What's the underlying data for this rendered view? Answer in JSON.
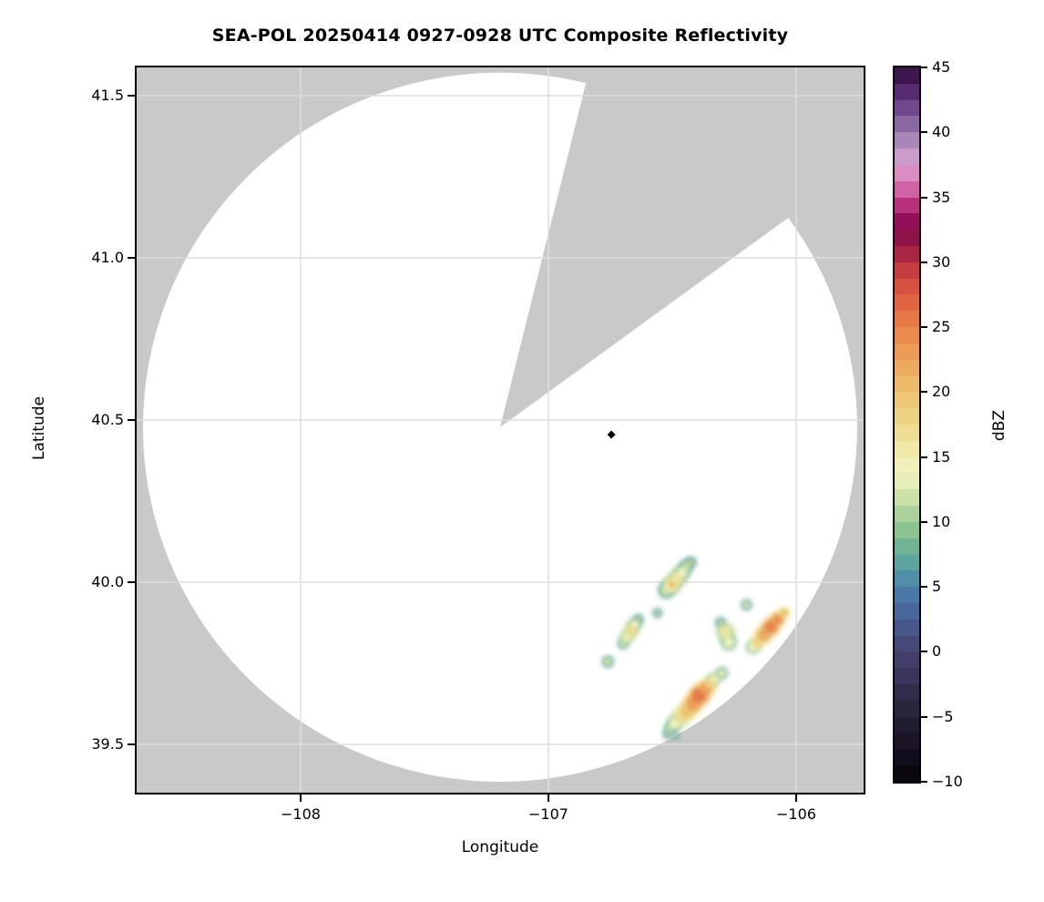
{
  "title": "SEA-POL 20250414 0927-0928 UTC Composite Reflectivity",
  "axes": {
    "xlabel": "Longitude",
    "ylabel": "Latitude",
    "x_ticks": [
      {
        "value": -108,
        "label": "−108"
      },
      {
        "value": -107,
        "label": "−107"
      },
      {
        "value": -106,
        "label": "−106"
      }
    ],
    "y_ticks": [
      {
        "value": 41.5,
        "label": "41.5"
      },
      {
        "value": 41.0,
        "label": "41.0"
      },
      {
        "value": 40.5,
        "label": "40.5"
      },
      {
        "value": 40.0,
        "label": "40.0"
      },
      {
        "value": 39.5,
        "label": "39.5"
      }
    ],
    "xlim": [
      -108.67,
      -105.72
    ],
    "ylim": [
      39.35,
      41.59
    ]
  },
  "colorbar": {
    "label": "dBZ",
    "vmin": -10,
    "vmax": 45,
    "ticks": [
      {
        "value": 45,
        "label": "45"
      },
      {
        "value": 40,
        "label": "40"
      },
      {
        "value": 35,
        "label": "35"
      },
      {
        "value": 30,
        "label": "30"
      },
      {
        "value": 25,
        "label": "25"
      },
      {
        "value": 20,
        "label": "20"
      },
      {
        "value": 15,
        "label": "15"
      },
      {
        "value": 10,
        "label": "10"
      },
      {
        "value": 5,
        "label": "5"
      },
      {
        "value": 0,
        "label": "0"
      },
      {
        "value": -5,
        "label": "−5"
      },
      {
        "value": -10,
        "label": "−10"
      }
    ],
    "colormap_stops": [
      [
        -10,
        "#050308"
      ],
      [
        -8.75,
        "#0e0a15"
      ],
      [
        -7.5,
        "#16101f"
      ],
      [
        -6.25,
        "#1e1829"
      ],
      [
        -5,
        "#262036"
      ],
      [
        -3.75,
        "#2e2743"
      ],
      [
        -2.5,
        "#363051"
      ],
      [
        -1.25,
        "#3e3a62"
      ],
      [
        0,
        "#444270"
      ],
      [
        1.25,
        "#46507f"
      ],
      [
        2.5,
        "#485e92"
      ],
      [
        3.75,
        "#4a70a2"
      ],
      [
        5,
        "#4c82ac"
      ],
      [
        6.25,
        "#559ba6"
      ],
      [
        7.5,
        "#65ab97"
      ],
      [
        8.75,
        "#7cba90"
      ],
      [
        10,
        "#9ccb95"
      ],
      [
        11.25,
        "#bcd9a0"
      ],
      [
        12.5,
        "#dbe8ae"
      ],
      [
        13.75,
        "#f2f3c2"
      ],
      [
        15,
        "#f0edb2"
      ],
      [
        16.25,
        "#eee29a"
      ],
      [
        17.5,
        "#edd88b"
      ],
      [
        18.75,
        "#edcc7c"
      ],
      [
        20,
        "#eec370"
      ],
      [
        21.25,
        "#edb365"
      ],
      [
        22.5,
        "#eca35b"
      ],
      [
        23.75,
        "#eb9351"
      ],
      [
        25,
        "#e88349"
      ],
      [
        26.25,
        "#e37043"
      ],
      [
        27.5,
        "#de5a42"
      ],
      [
        28.75,
        "#cf4741"
      ],
      [
        30,
        "#b73241"
      ],
      [
        31.25,
        "#991a45"
      ],
      [
        32.5,
        "#80094a"
      ],
      [
        33.75,
        "#a51465"
      ],
      [
        35,
        "#c94e95"
      ],
      [
        36.25,
        "#d877b3"
      ],
      [
        37.5,
        "#d9a2ce"
      ],
      [
        38.75,
        "#bb95c5"
      ],
      [
        40,
        "#9678ad"
      ],
      [
        41.25,
        "#7d5897"
      ],
      [
        42.5,
        "#63387e"
      ],
      [
        43.75,
        "#491d60"
      ],
      [
        45,
        "#2e0e39"
      ]
    ]
  },
  "colors": {
    "background": "#ffffff",
    "masked_gray": "#c9c9c9",
    "coverage_white": "#ffffff",
    "grid": "#dedede",
    "spine": "#000000",
    "marker_black": "#000000"
  },
  "chart_data": {
    "type": "heatmap",
    "title": "SEA-POL 20250414 0927-0928 UTC Composite Reflectivity",
    "xlabel": "Longitude",
    "ylabel": "Latitude",
    "xlim": [
      -108.67,
      -105.72
    ],
    "ylim": [
      39.35,
      41.59
    ],
    "grid": "on",
    "value_label": "dBZ",
    "value_range": [
      -10,
      45
    ],
    "legend_position": "right-colorbar",
    "radar": {
      "center_lon": -107.195,
      "center_lat": 40.478,
      "coverage_rx_deg_lon": 1.441,
      "coverage_ry_deg_lat": 1.093,
      "blocked_sector_azimuth_deg": [
        14,
        54
      ]
    },
    "marker": {
      "lon": -106.746,
      "lat": 40.455,
      "shape": "diamond",
      "color": "#000000"
    },
    "echo_columns": [
      "lon",
      "lat",
      "dbz",
      "radius_px"
    ],
    "echoes": [
      [
        -106.525,
        39.975,
        12,
        6
      ],
      [
        -106.505,
        39.99,
        15,
        7
      ],
      [
        -106.5,
        39.995,
        21,
        4.5
      ],
      [
        -106.48,
        40.012,
        16,
        7
      ],
      [
        -106.458,
        40.032,
        14,
        6
      ],
      [
        -106.443,
        40.05,
        12,
        5
      ],
      [
        -106.425,
        40.062,
        11,
        4
      ],
      [
        -106.56,
        39.905,
        11,
        3.5
      ],
      [
        -106.2,
        39.93,
        12,
        4
      ],
      [
        -106.305,
        39.875,
        11,
        4
      ],
      [
        -106.285,
        39.845,
        16,
        7
      ],
      [
        -106.272,
        39.815,
        14,
        6
      ],
      [
        -106.175,
        39.8,
        14,
        5
      ],
      [
        -106.155,
        39.815,
        18,
        6
      ],
      [
        -106.13,
        39.838,
        22,
        7
      ],
      [
        -106.103,
        39.862,
        25,
        7
      ],
      [
        -106.075,
        39.885,
        24,
        6
      ],
      [
        -106.05,
        39.905,
        20,
        5
      ],
      [
        -106.7,
        39.81,
        12,
        4
      ],
      [
        -106.685,
        39.83,
        15,
        5
      ],
      [
        -106.665,
        39.852,
        17,
        6
      ],
      [
        -106.65,
        39.872,
        14,
        5
      ],
      [
        -106.635,
        39.887,
        11,
        3.5
      ],
      [
        -106.76,
        39.755,
        12,
        4.5
      ],
      [
        -106.3,
        39.72,
        13,
        4.5
      ],
      [
        -106.51,
        39.55,
        12,
        4
      ],
      [
        -106.49,
        39.565,
        14,
        6
      ],
      [
        -106.465,
        39.585,
        17,
        7
      ],
      [
        -106.44,
        39.602,
        20,
        8
      ],
      [
        -106.415,
        39.627,
        23,
        8
      ],
      [
        -106.39,
        39.652,
        26,
        8
      ],
      [
        -106.365,
        39.672,
        23,
        7
      ],
      [
        -106.348,
        39.687,
        19,
        6
      ],
      [
        -106.333,
        39.7,
        15,
        5
      ],
      [
        -106.52,
        39.532,
        11,
        3.5
      ],
      [
        -106.488,
        39.527,
        11,
        3
      ]
    ]
  }
}
